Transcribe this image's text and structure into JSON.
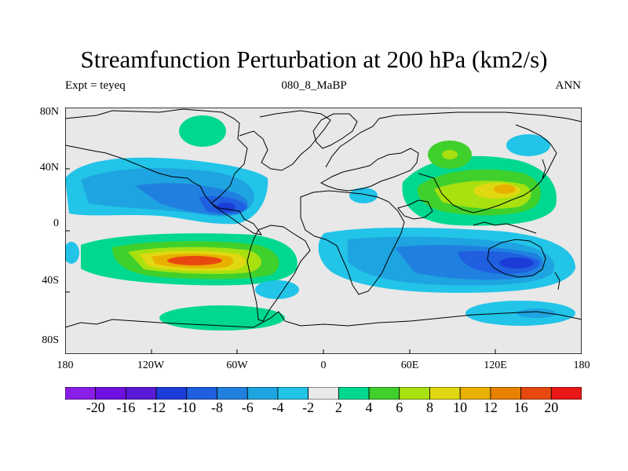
{
  "title": "Streamfunction Perturbation at 200 hPa (km2/s)",
  "left_label": "Expt = teyeq",
  "center_label": "080_8_MaBP",
  "right_label": "ANN",
  "lat_labels": [
    "80N",
    "40N",
    "0",
    "40S",
    "80S"
  ],
  "lon_labels": [
    "180",
    "120W",
    "60W",
    "0",
    "60E",
    "120E",
    "180"
  ],
  "colorbar": {
    "colors": [
      "#8a1ee6",
      "#6e10e0",
      "#5a1ad6",
      "#1c3cd8",
      "#1f5fe0",
      "#2080e0",
      "#1ea4e0",
      "#22c4e8",
      "#e8e8e8",
      "#00d890",
      "#40d02c",
      "#a8e010",
      "#e0d810",
      "#e8b000",
      "#e88000",
      "#e84810",
      "#e81818"
    ],
    "labels": [
      "-20",
      "-16",
      "-12",
      "-10",
      "-8",
      "-6",
      "-4",
      "-2",
      "2",
      "4",
      "6",
      "8",
      "10",
      "12",
      "16",
      "20"
    ]
  },
  "fields": {
    "background": "#e8e8e8",
    "coastline": "#000000"
  }
}
